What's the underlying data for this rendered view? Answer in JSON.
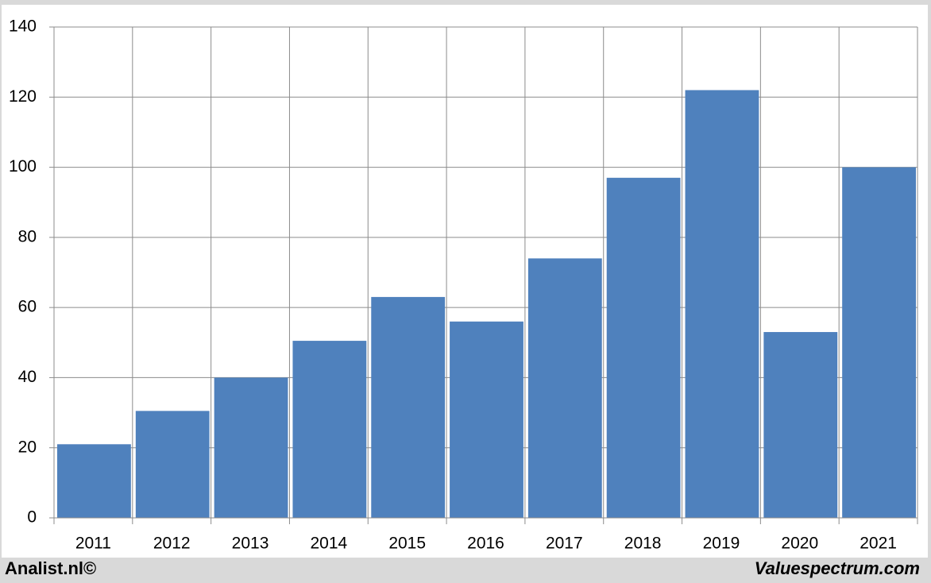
{
  "chart_data": {
    "type": "bar",
    "categories": [
      "2011",
      "2012",
      "2013",
      "2014",
      "2015",
      "2016",
      "2017",
      "2018",
      "2019",
      "2020",
      "2021"
    ],
    "values": [
      21,
      30.5,
      40,
      50.5,
      63,
      56,
      74,
      97,
      122,
      53,
      100
    ],
    "color": "#4f81bd",
    "ylim": [
      0,
      140
    ],
    "yticks": [
      0,
      20,
      40,
      60,
      80,
      100,
      120,
      140
    ],
    "grid": true
  },
  "footer": {
    "left": "Analist.nl©",
    "right": "Valuespectrum.com"
  }
}
